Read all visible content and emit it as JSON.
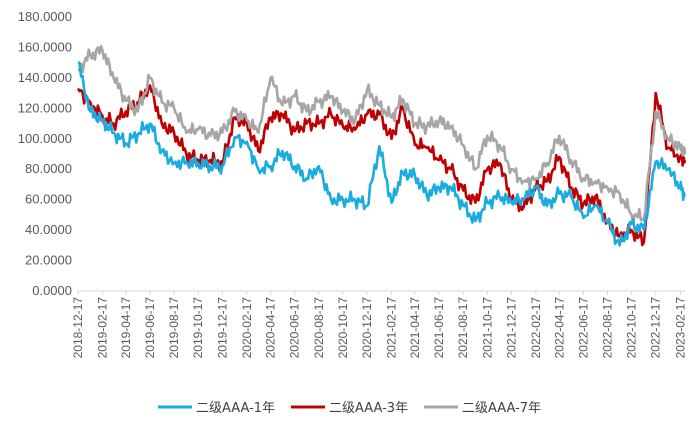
{
  "chart_data": {
    "type": "line",
    "title": "",
    "xlabel": "",
    "ylabel": "",
    "ylim": [
      0,
      180
    ],
    "grid": false,
    "legend_position": "bottom",
    "y_ticks": [
      "0.0000",
      "20.0000",
      "40.0000",
      "60.0000",
      "80.0000",
      "100.0000",
      "120.0000",
      "140.0000",
      "160.0000",
      "180.0000"
    ],
    "x_ticks": [
      "2018-12-17",
      "2019-02-17",
      "2019-04-17",
      "2019-06-17",
      "2019-08-17",
      "2019-10-17",
      "2019-12-17",
      "2020-02-17",
      "2020-04-17",
      "2020-06-17",
      "2020-08-17",
      "2020-10-17",
      "2020-12-17",
      "2021-02-17",
      "2021-04-17",
      "2021-06-17",
      "2021-08-17",
      "2021-10-17",
      "2021-12-17",
      "2022-02-17",
      "2022-04-17",
      "2022-06-17",
      "2022-08-17",
      "2022-10-17",
      "2022-12-17",
      "2023-02-17"
    ],
    "x": [
      "2018-12-17",
      "2019-01-17",
      "2019-02-17",
      "2019-03-17",
      "2019-04-17",
      "2019-05-17",
      "2019-06-17",
      "2019-07-17",
      "2019-08-17",
      "2019-09-17",
      "2019-10-17",
      "2019-11-17",
      "2019-12-17",
      "2020-01-17",
      "2020-02-17",
      "2020-03-17",
      "2020-04-17",
      "2020-05-17",
      "2020-06-17",
      "2020-07-17",
      "2020-08-17",
      "2020-09-17",
      "2020-10-17",
      "2020-11-17",
      "2020-12-17",
      "2021-01-17",
      "2021-02-17",
      "2021-03-17",
      "2021-04-17",
      "2021-05-17",
      "2021-06-17",
      "2021-07-17",
      "2021-08-17",
      "2021-09-17",
      "2021-10-17",
      "2021-11-17",
      "2021-12-17",
      "2022-01-17",
      "2022-02-17",
      "2022-03-17",
      "2022-04-17",
      "2022-05-17",
      "2022-06-17",
      "2022-07-17",
      "2022-08-17",
      "2022-09-17",
      "2022-10-17",
      "2022-11-17",
      "2022-12-17",
      "2023-01-17",
      "2023-02-17",
      "2023-03-01"
    ],
    "series": [
      {
        "name": "二级AAA-1年",
        "color": "#1AACE0",
        "values": [
          150,
          118,
          112,
          104,
          97,
          103,
          110,
          92,
          84,
          85,
          84,
          82,
          82,
          101,
          98,
          80,
          82,
          92,
          82,
          74,
          82,
          60,
          60,
          60,
          56,
          95,
          58,
          78,
          76,
          63,
          68,
          68,
          56,
          46,
          58,
          62,
          58,
          60,
          68,
          56,
          64,
          62,
          48,
          56,
          45,
          30,
          44,
          40,
          85,
          80,
          68,
          63
        ]
      },
      {
        "name": "二级AAA-3年",
        "color": "#C00000",
        "values": [
          133,
          124,
          115,
          110,
          118,
          124,
          135,
          110,
          104,
          90,
          86,
          86,
          84,
          114,
          110,
          92,
          114,
          116,
          105,
          110,
          110,
          116,
          108,
          106,
          116,
          116,
          100,
          120,
          96,
          94,
          86,
          80,
          66,
          58,
          80,
          84,
          60,
          55,
          68,
          72,
          88,
          68,
          57,
          62,
          45,
          36,
          40,
          32,
          130,
          94,
          88,
          86
        ]
      },
      {
        "name": "二级AAA-7年",
        "color": "#A6A6A6",
        "values": [
          145,
          155,
          158,
          140,
          125,
          118,
          140,
          124,
          120,
          104,
          106,
          102,
          104,
          118,
          112,
          104,
          140,
          122,
          128,
          118,
          124,
          128,
          118,
          112,
          132,
          122,
          114,
          126,
          110,
          108,
          112,
          108,
          96,
          80,
          102,
          96,
          80,
          72,
          74,
          84,
          102,
          86,
          74,
          72,
          68,
          64,
          50,
          48,
          118,
          100,
          95,
          90
        ]
      }
    ]
  }
}
